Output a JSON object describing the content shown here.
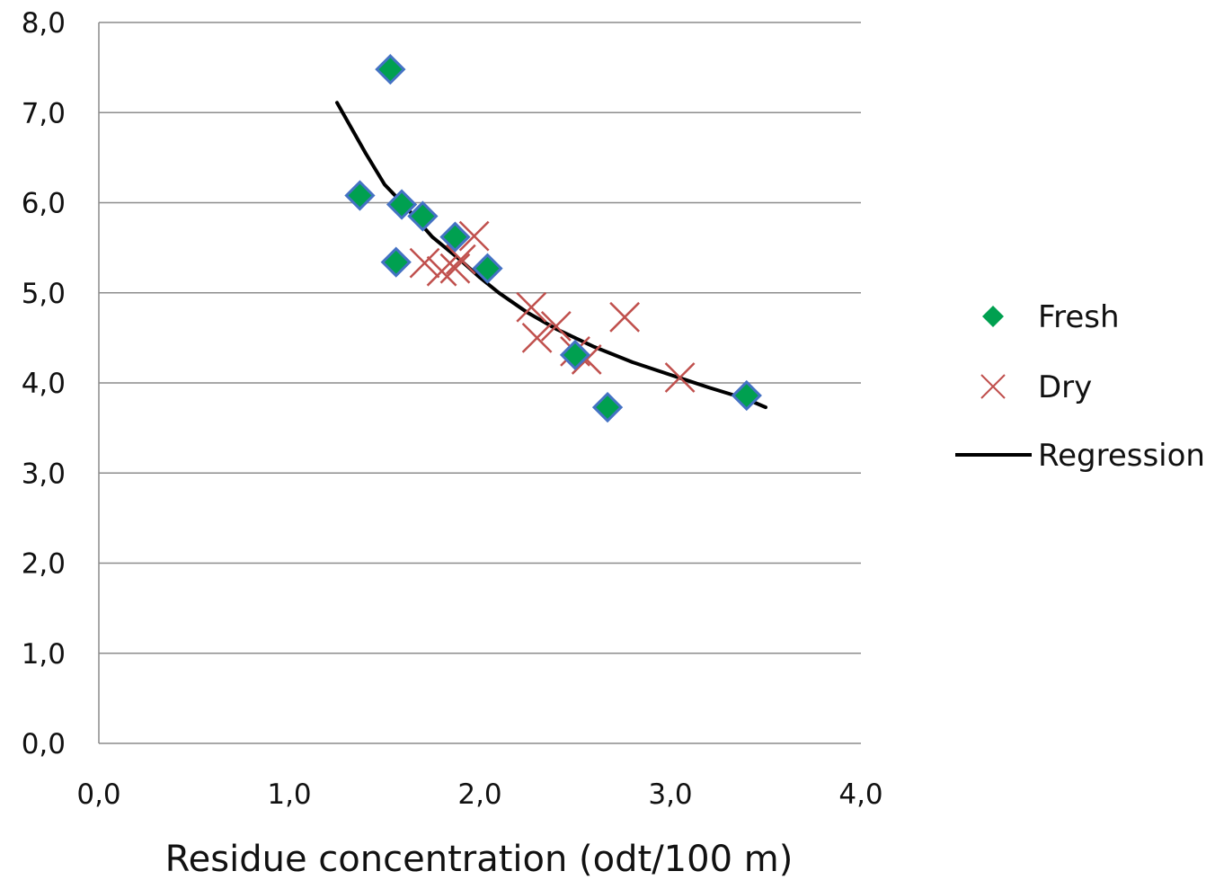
{
  "chart_data": {
    "type": "scatter",
    "title": "",
    "xlabel": "Residue concentration  (odt/100 m)",
    "ylabel": "",
    "xlim": [
      0,
      4
    ],
    "ylim": [
      0,
      8
    ],
    "x_ticks": [
      "0,0",
      "1,0",
      "2,0",
      "3,0",
      "4,0"
    ],
    "y_ticks": [
      "0,0",
      "1,0",
      "2,0",
      "3,0",
      "4,0",
      "5,0",
      "6,0",
      "7,0",
      "8,0"
    ],
    "grid": "horizontal",
    "legend_position": "right",
    "series": [
      {
        "name": "Fresh",
        "marker": "diamond",
        "color": "#00A050",
        "edge_color": "#4472C4",
        "points": [
          [
            1.53,
            7.48
          ],
          [
            1.37,
            6.08
          ],
          [
            1.59,
            5.98
          ],
          [
            1.7,
            5.85
          ],
          [
            1.56,
            5.34
          ],
          [
            1.87,
            5.62
          ],
          [
            2.04,
            5.27
          ],
          [
            2.5,
            4.31
          ],
          [
            2.67,
            3.73
          ],
          [
            3.4,
            3.86
          ]
        ]
      },
      {
        "name": "Dry",
        "marker": "x",
        "color": "#C0504D",
        "points": [
          [
            1.71,
            5.33
          ],
          [
            1.8,
            5.24
          ],
          [
            1.87,
            5.27
          ],
          [
            1.9,
            5.37
          ],
          [
            1.97,
            5.63
          ],
          [
            2.27,
            4.84
          ],
          [
            2.3,
            4.5
          ],
          [
            2.4,
            4.63
          ],
          [
            2.56,
            4.26
          ],
          [
            2.5,
            4.35
          ],
          [
            2.76,
            4.73
          ],
          [
            3.05,
            4.06
          ]
        ]
      },
      {
        "name": "Regression",
        "marker": "line",
        "color": "#000000",
        "points": [
          [
            1.25,
            7.11
          ],
          [
            1.4,
            6.55
          ],
          [
            1.5,
            6.2
          ],
          [
            1.6,
            5.98
          ],
          [
            1.75,
            5.62
          ],
          [
            1.9,
            5.36
          ],
          [
            2.0,
            5.17
          ],
          [
            2.1,
            5.0
          ],
          [
            2.25,
            4.78
          ],
          [
            2.4,
            4.6
          ],
          [
            2.6,
            4.4
          ],
          [
            2.8,
            4.23
          ],
          [
            3.0,
            4.09
          ],
          [
            3.2,
            3.95
          ],
          [
            3.4,
            3.82
          ],
          [
            3.5,
            3.73
          ]
        ]
      }
    ]
  }
}
